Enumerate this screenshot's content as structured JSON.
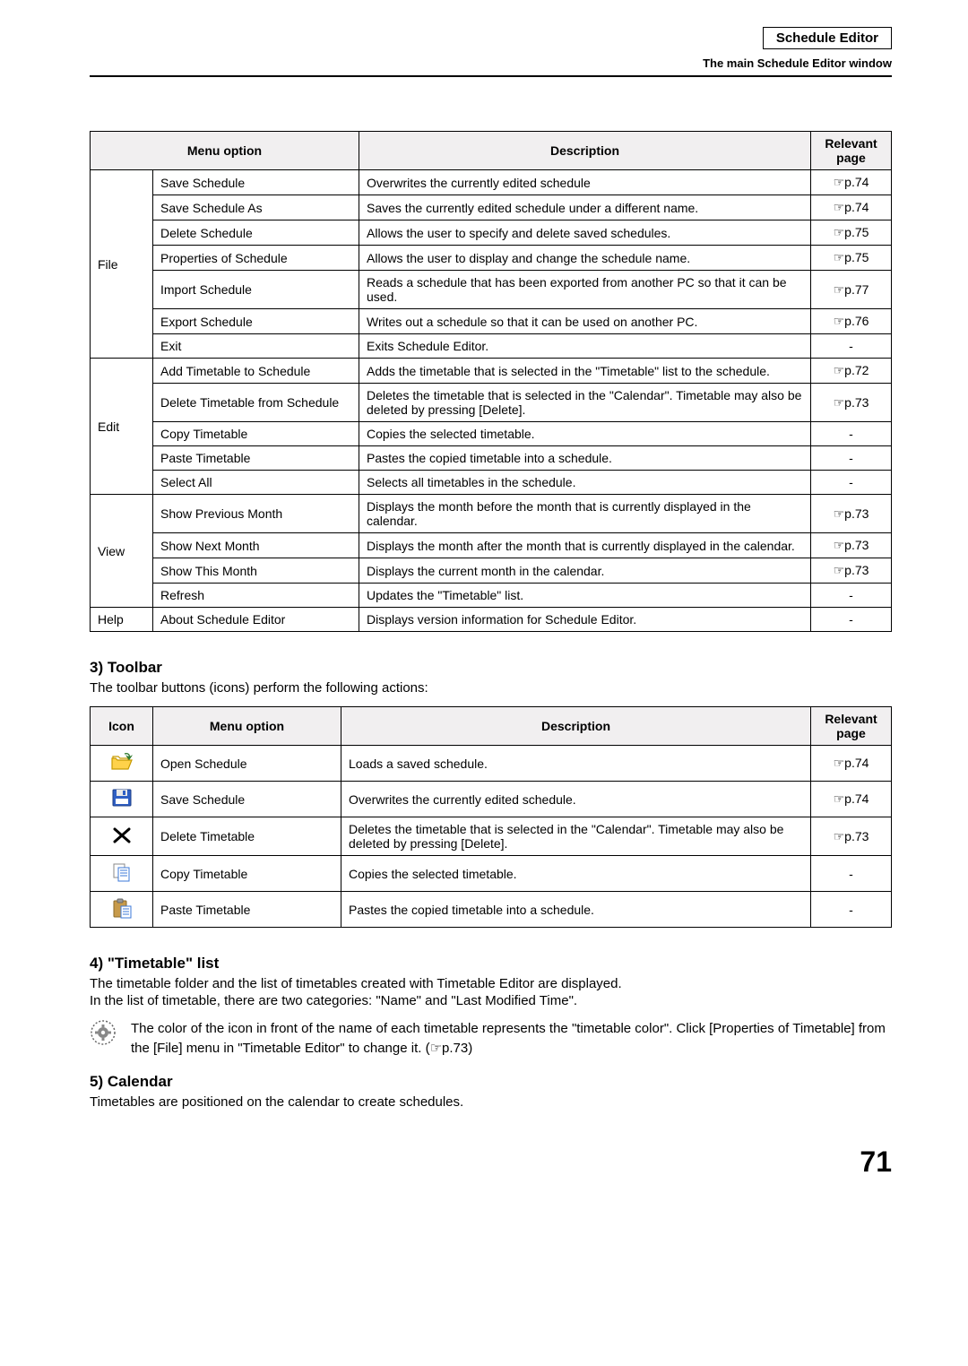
{
  "header": {
    "title": "Schedule Editor",
    "subtitle": "The main Schedule Editor window"
  },
  "menuTable": {
    "headers": {
      "menu": "Menu option",
      "desc": "Description",
      "page": "Relevant page"
    },
    "groups": [
      {
        "category": "File",
        "rows": [
          {
            "opt": "Save Schedule",
            "desc": "Overwrites the currently edited schedule",
            "page": "p.74"
          },
          {
            "opt": "Save Schedule As",
            "desc": "Saves the currently edited schedule under a different name.",
            "page": "p.74"
          },
          {
            "opt": "Delete Schedule",
            "desc": "Allows the user to specify and delete saved schedules.",
            "page": "p.75"
          },
          {
            "opt": "Properties of Schedule",
            "desc": "Allows the user to display and change the schedule name.",
            "page": "p.75"
          },
          {
            "opt": "Import Schedule",
            "desc": "Reads a schedule that has been exported from another PC so that it can be used.",
            "page": "p.77"
          },
          {
            "opt": "Export Schedule",
            "desc": "Writes out a schedule so that it can be used on another PC.",
            "page": "p.76"
          },
          {
            "opt": "Exit",
            "desc": "Exits Schedule Editor.",
            "page": "-"
          }
        ]
      },
      {
        "category": "Edit",
        "rows": [
          {
            "opt": "Add Timetable to Schedule",
            "desc": "Adds the timetable that is selected in the \"Timetable\" list to the schedule.",
            "page": "p.72"
          },
          {
            "opt": "Delete Timetable from Schedule",
            "desc": "Deletes the timetable that is selected in the \"Calendar\". Timetable may also be deleted by pressing [Delete].",
            "page": "p.73"
          },
          {
            "opt": "Copy Timetable",
            "desc": "Copies the selected timetable.",
            "page": "-"
          },
          {
            "opt": "Paste Timetable",
            "desc": "Pastes the copied timetable into a schedule.",
            "page": "-"
          },
          {
            "opt": "Select All",
            "desc": "Selects all timetables in the schedule.",
            "page": "-"
          }
        ]
      },
      {
        "category": "View",
        "rows": [
          {
            "opt": "Show Previous Month",
            "desc": "Displays the month before the month that is currently displayed in the calendar.",
            "page": "p.73"
          },
          {
            "opt": "Show Next Month",
            "desc": "Displays the month after the month that is currently displayed in the calendar.",
            "page": "p.73"
          },
          {
            "opt": "Show This Month",
            "desc": "Displays the current month in the calendar.",
            "page": "p.73"
          },
          {
            "opt": "Refresh",
            "desc": "Updates the \"Timetable\" list.",
            "page": "-"
          }
        ]
      },
      {
        "category": "Help",
        "rows": [
          {
            "opt": "About Schedule Editor",
            "desc": "Displays version information for Schedule Editor.",
            "page": "-"
          }
        ]
      }
    ]
  },
  "section3": {
    "title": "3) Toolbar",
    "intro": "The toolbar buttons (icons) perform the following actions:"
  },
  "toolbarTable": {
    "headers": {
      "icon": "Icon",
      "menu": "Menu option",
      "desc": "Description",
      "page": "Relevant page"
    },
    "rows": [
      {
        "icon": "open",
        "opt": "Open Schedule",
        "desc": "Loads a saved schedule.",
        "page": "p.74"
      },
      {
        "icon": "save",
        "opt": "Save Schedule",
        "desc": "Overwrites the currently edited schedule.",
        "page": "p.74"
      },
      {
        "icon": "delete",
        "opt": "Delete Timetable",
        "desc": "Deletes the timetable that is selected in the \"Calendar\". Timetable may also be deleted by pressing [Delete].",
        "page": "p.73"
      },
      {
        "icon": "copy",
        "opt": "Copy Timetable",
        "desc": "Copies the selected timetable.",
        "page": "-"
      },
      {
        "icon": "paste",
        "opt": "Paste Timetable",
        "desc": "Pastes the copied timetable into a schedule.",
        "page": "-"
      }
    ]
  },
  "section4": {
    "title": "4) \"Timetable\" list",
    "p1": "The timetable folder and the list of timetables created with Timetable Editor are displayed.",
    "p2": "In the list of timetable, there are two categories: \"Name\" and \"Last Modified Time\".",
    "note": "The color of the icon in front of the name of each timetable represents the \"timetable color\". Click [Properties of Timetable] from the [File] menu in \"Timetable Editor\" to change it. (☞p.73)"
  },
  "section5": {
    "title": "5) Calendar",
    "p1": "Timetables are positioned on the calendar to create schedules."
  },
  "pageNumber": "71",
  "glyphs": {
    "ref": "☞"
  }
}
